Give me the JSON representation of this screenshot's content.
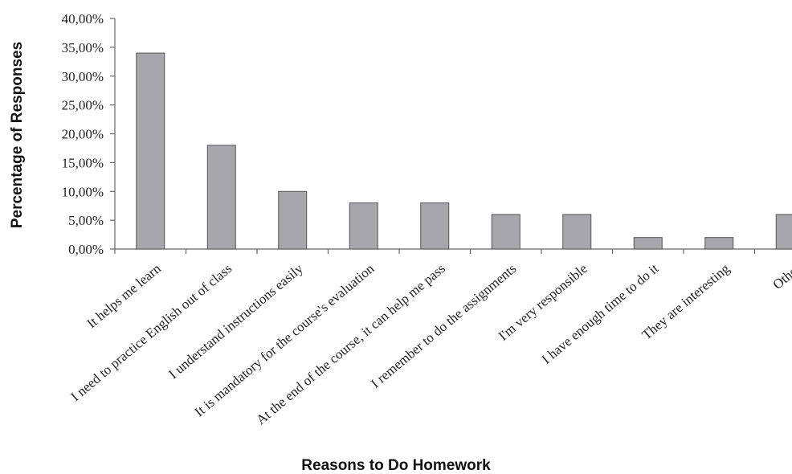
{
  "chart_data": {
    "type": "bar",
    "title": "",
    "xlabel": "Reasons to Do Homework",
    "ylabel": "Percentage of Responses",
    "ylim": [
      0,
      40
    ],
    "ytick_step": 5,
    "ytick_labels": [
      "0,00%",
      "5,00%",
      "10,00%",
      "15,00%",
      "20,00%",
      "25,00%",
      "30,00%",
      "35,00%",
      "40,00%"
    ],
    "categories": [
      "It helps me learn",
      "I need to practice English out of class",
      "I understand instructions easily",
      "It is mandatory for the course's evaluation",
      "At the end of the course, it can help me pass",
      "I remember to do the assignments",
      "I'm very responsible",
      "I have enough time to do it",
      "They are interesting",
      "Other"
    ],
    "values": [
      34,
      18,
      10,
      8,
      8,
      6,
      6,
      2,
      2,
      6
    ],
    "bar_color": "#a6a6ab",
    "bar_edge_color": "#555555",
    "grid": false,
    "legend": "none"
  }
}
